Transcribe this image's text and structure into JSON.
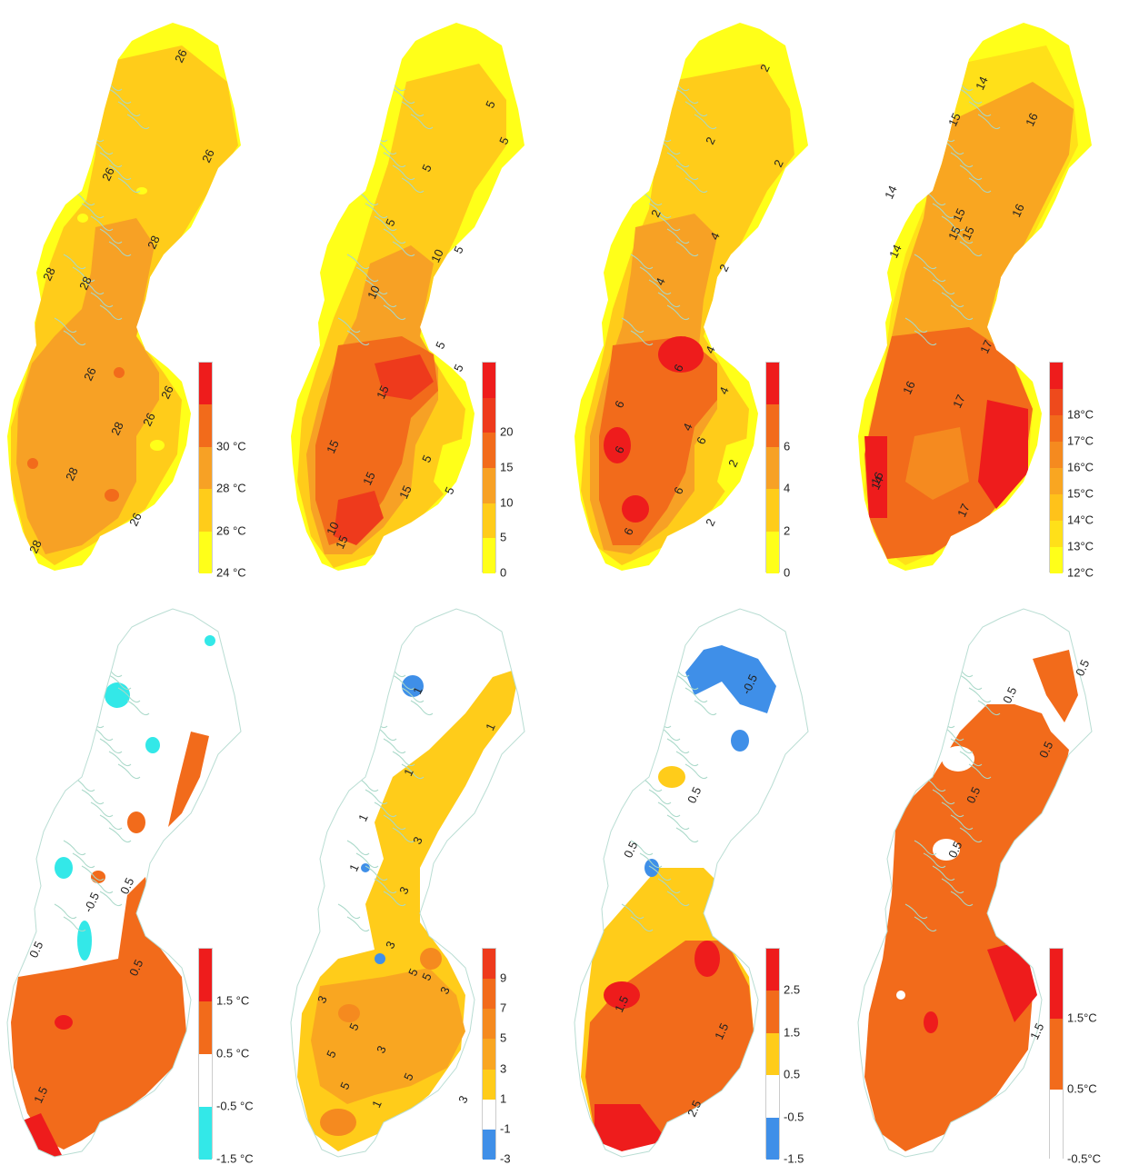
{
  "panels": [
    {
      "id": "p1",
      "legend": {
        "colors": [
          "#ffff19",
          "#ffcc1a",
          "#f7a125",
          "#f26b1b",
          "#ee1c1c"
        ],
        "labels": [
          "24 °C",
          "26 °C",
          "28 °C",
          "30 °C"
        ],
        "label_at_boundaries": [
          0,
          1,
          2,
          3
        ]
      },
      "contour_labels": [
        "26",
        "26",
        "26",
        "28",
        "28",
        "26",
        "28",
        "28",
        "28",
        "26",
        "26",
        "28",
        "26"
      ]
    },
    {
      "id": "p2",
      "legend": {
        "colors": [
          "#ffff19",
          "#ffcc1a",
          "#f7a125",
          "#f26b1b",
          "#ee3a1c",
          "#ee1c1c"
        ],
        "labels": [
          "0",
          "5",
          "10",
          "15",
          "20"
        ],
        "label_at_boundaries": [
          0,
          1,
          2,
          3,
          4
        ]
      },
      "contour_labels": [
        "5",
        "5",
        "5",
        "5",
        "10",
        "5",
        "10",
        "15",
        "5",
        "15",
        "15",
        "5",
        "15",
        "5",
        "10",
        "15",
        "5"
      ]
    },
    {
      "id": "p3",
      "legend": {
        "colors": [
          "#ffff19",
          "#ffcc1a",
          "#f7a125",
          "#f26b1b",
          "#ee1c1c"
        ],
        "labels": [
          "0",
          "2",
          "4",
          "6"
        ],
        "label_at_boundaries": [
          0,
          1,
          2,
          3
        ]
      },
      "contour_labels": [
        "2",
        "2",
        "2",
        "2",
        "4",
        "2",
        "4",
        "4",
        "6",
        "6",
        "6",
        "4",
        "6",
        "2",
        "6",
        "2",
        "6",
        "4"
      ]
    },
    {
      "id": "p4",
      "legend": {
        "colors": [
          "#ffff19",
          "#ffe019",
          "#ffc21a",
          "#f9a621",
          "#f58a1f",
          "#f26b1b",
          "#ee4a1c",
          "#ee1c1c"
        ],
        "labels": [
          "12°C",
          "13°C",
          "14°C",
          "15°C",
          "16°C",
          "17°C",
          "18°C"
        ],
        "label_at_boundaries": [
          0,
          1,
          2,
          3,
          4,
          5,
          6
        ]
      },
      "contour_labels": [
        "14",
        "15",
        "16",
        "14",
        "15",
        "15",
        "16",
        "14",
        "15",
        "17",
        "16",
        "17",
        "16",
        "17",
        "14"
      ]
    },
    {
      "id": "p5",
      "legend": {
        "colors": [
          "#33e8e8",
          "#ffffff",
          "#f26b1b",
          "#ee1c1c"
        ],
        "labels": [
          "-1.5 °C",
          "-0.5 °C",
          "0.5 °C",
          "1.5 °C"
        ],
        "label_at_boundaries": [
          0,
          1,
          2,
          3
        ]
      },
      "contour_labels": [
        "0.5",
        "-0.5",
        "0.5",
        "0.5",
        "1.5"
      ]
    },
    {
      "id": "p6",
      "legend": {
        "colors": [
          "#3f8fe8",
          "#ffffff",
          "#ffcc1a",
          "#f9a621",
          "#f58a1f",
          "#f26b1b",
          "#ee3a1c"
        ],
        "labels": [
          "-3",
          "-1",
          "1",
          "3",
          "5",
          "7",
          "9"
        ],
        "label_at_boundaries": [
          0,
          1,
          2,
          3,
          4,
          5,
          6
        ]
      },
      "contour_labels": [
        "1",
        "1",
        "1",
        "1",
        "3",
        "1",
        "3",
        "3",
        "5",
        "5",
        "3",
        "3",
        "5",
        "3",
        "5",
        "5",
        "5",
        "1",
        "3"
      ]
    },
    {
      "id": "p7",
      "legend": {
        "colors": [
          "#3f8fe8",
          "#ffffff",
          "#ffcc1a",
          "#f26b1b",
          "#ee1c1c"
        ],
        "labels": [
          "-1.5",
          "-0.5",
          "0.5",
          "1.5",
          "2.5"
        ],
        "label_at_boundaries": [
          0,
          1,
          2,
          3,
          4
        ]
      },
      "contour_labels": [
        "-0.5",
        "0.5",
        "0.5",
        "1.5",
        "1.5",
        "2.5"
      ]
    },
    {
      "id": "p8",
      "legend": {
        "colors": [
          "#ffffff",
          "#f26b1b",
          "#ee1c1c"
        ],
        "labels": [
          "-0.5°C",
          "0.5°C",
          "1.5°C"
        ],
        "label_at_boundaries": [
          0,
          1,
          2
        ]
      },
      "contour_labels": [
        "0.5",
        "0.5",
        "0.5",
        "0.5",
        "0.5",
        "1.5"
      ]
    }
  ]
}
